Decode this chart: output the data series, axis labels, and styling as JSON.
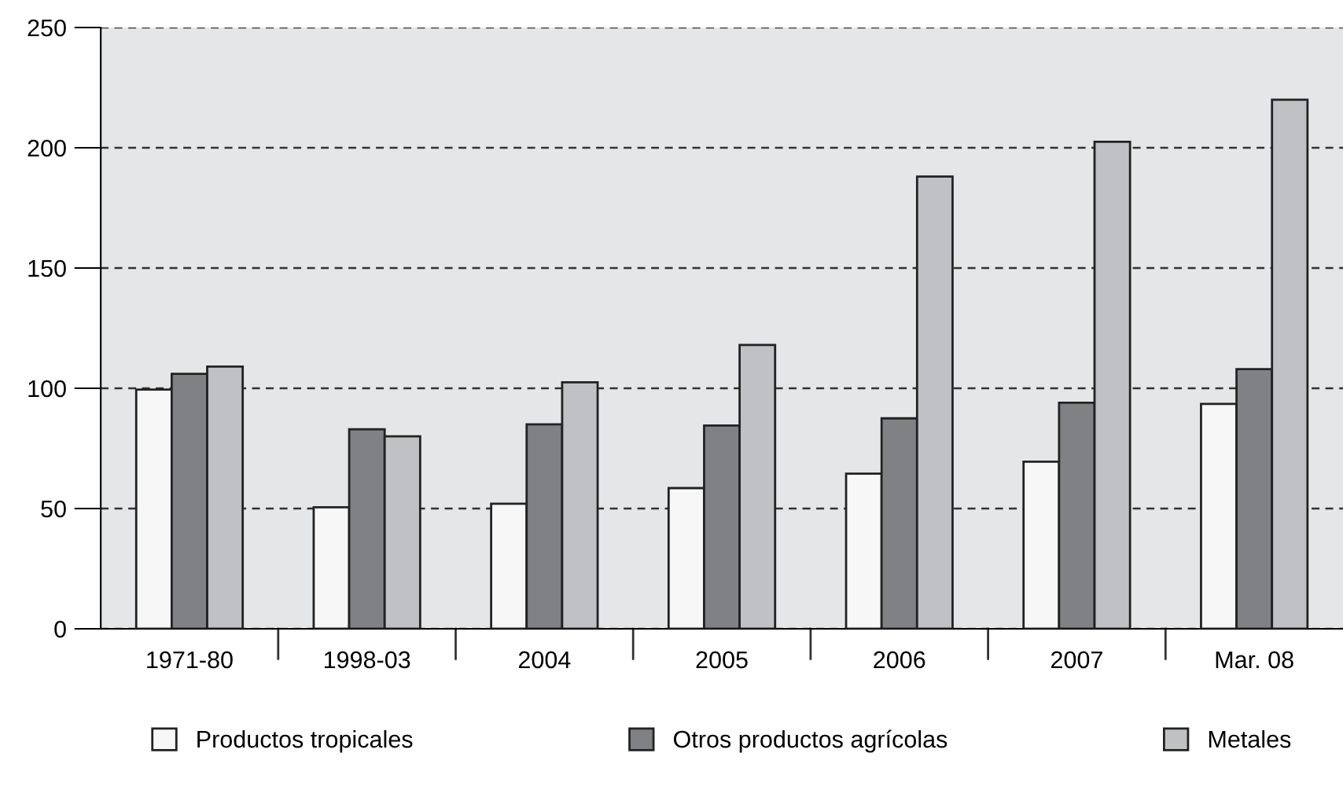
{
  "chart_data": {
    "type": "bar",
    "categories": [
      "1971-80",
      "1998-03",
      "2004",
      "2005",
      "2006",
      "2007",
      "Mar. 08"
    ],
    "series": [
      {
        "name": "Productos tropicales",
        "color": "#f7f7f7",
        "values": [
          99.5,
          50.5,
          52,
          58.5,
          64.5,
          69.5,
          93.5
        ]
      },
      {
        "name": "Otros productos agrícolas",
        "color": "#808185",
        "values": [
          106,
          83,
          85,
          84.5,
          87.5,
          94,
          108
        ]
      },
      {
        "name": "Metales",
        "color": "#c0c1c4",
        "values": [
          109,
          80,
          102.5,
          118,
          188,
          202.5,
          220
        ]
      }
    ],
    "ylim": [
      0,
      250
    ],
    "yticks": [
      0,
      50,
      100,
      150,
      200,
      250
    ],
    "grid": "y",
    "legend": "bottom"
  }
}
